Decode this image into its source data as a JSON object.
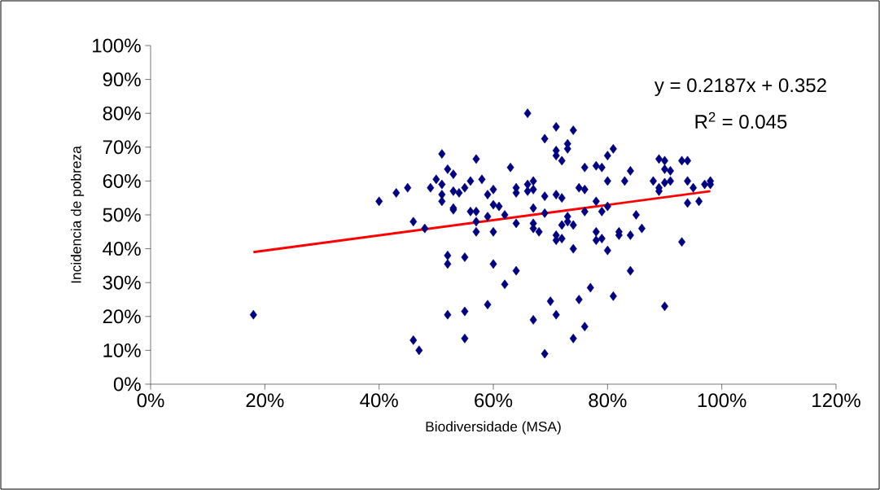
{
  "chart_data": {
    "type": "scatter",
    "xlabel": "Biodiversidade (MSA)",
    "ylabel": "Incidencia de pobreza",
    "annotations": [
      "y = 0.2187x + 0.352",
      "R$^{2}$ = 0.045"
    ],
    "xlim": [
      0,
      1.2
    ],
    "ylim": [
      0,
      1
    ],
    "xticks": [
      {
        "value": 0,
        "label": "0%"
      },
      {
        "value": 0.2,
        "label": "20%"
      },
      {
        "value": 0.4,
        "label": "40%"
      },
      {
        "value": 0.6,
        "label": "60%"
      },
      {
        "value": 0.8,
        "label": "80%"
      },
      {
        "value": 1.0,
        "label": "100%"
      },
      {
        "value": 1.2,
        "label": "120%"
      }
    ],
    "yticks": [
      {
        "value": 0,
        "label": "0%"
      },
      {
        "value": 0.1,
        "label": "10%"
      },
      {
        "value": 0.2,
        "label": "20%"
      },
      {
        "value": 0.3,
        "label": "30%"
      },
      {
        "value": 0.4,
        "label": "40%"
      },
      {
        "value": 0.5,
        "label": "50%"
      },
      {
        "value": 0.6,
        "label": "60%"
      },
      {
        "value": 0.7,
        "label": "70%"
      },
      {
        "value": 0.8,
        "label": "80%"
      },
      {
        "value": 0.9,
        "label": "90%"
      },
      {
        "value": 1.0,
        "label": "100%"
      }
    ],
    "grid": false,
    "series": [
      {
        "color": "#000080",
        "marker": "diamond",
        "x": [
          0.18,
          0.4,
          0.43,
          0.45,
          0.46,
          0.46,
          0.47,
          0.48,
          0.49,
          0.5,
          0.51,
          0.51,
          0.51,
          0.51,
          0.52,
          0.52,
          0.52,
          0.52,
          0.53,
          0.53,
          0.53,
          0.53,
          0.54,
          0.55,
          0.55,
          0.55,
          0.55,
          0.56,
          0.56,
          0.57,
          0.57,
          0.57,
          0.57,
          0.58,
          0.59,
          0.59,
          0.59,
          0.6,
          0.6,
          0.6,
          0.6,
          0.61,
          0.62,
          0.62,
          0.63,
          0.64,
          0.64,
          0.64,
          0.64,
          0.66,
          0.66,
          0.66,
          0.67,
          0.67,
          0.67,
          0.67,
          0.67,
          0.67,
          0.68,
          0.69,
          0.69,
          0.69,
          0.69,
          0.7,
          0.71,
          0.71,
          0.71,
          0.71,
          0.71,
          0.71,
          0.71,
          0.72,
          0.72,
          0.72,
          0.72,
          0.73,
          0.73,
          0.73,
          0.73,
          0.74,
          0.74,
          0.74,
          0.74,
          0.75,
          0.75,
          0.76,
          0.76,
          0.76,
          0.76,
          0.77,
          0.78,
          0.78,
          0.78,
          0.78,
          0.79,
          0.79,
          0.79,
          0.8,
          0.8,
          0.8,
          0.8,
          0.81,
          0.81,
          0.82,
          0.82,
          0.83,
          0.84,
          0.84,
          0.84,
          0.85,
          0.86,
          0.88,
          0.89,
          0.89,
          0.89,
          0.9,
          0.9,
          0.9,
          0.9,
          0.91,
          0.91,
          0.93,
          0.93,
          0.94,
          0.94,
          0.94,
          0.95,
          0.96,
          0.97,
          0.98,
          0.98
        ],
        "values": [
          0.205,
          0.54,
          0.565,
          0.58,
          0.48,
          0.13,
          0.1,
          0.46,
          0.58,
          0.605,
          0.68,
          0.59,
          0.56,
          0.54,
          0.635,
          0.38,
          0.355,
          0.205,
          0.62,
          0.57,
          0.52,
          0.515,
          0.565,
          0.58,
          0.375,
          0.215,
          0.135,
          0.6,
          0.51,
          0.665,
          0.51,
          0.48,
          0.45,
          0.605,
          0.56,
          0.495,
          0.235,
          0.575,
          0.53,
          0.45,
          0.355,
          0.525,
          0.5,
          0.295,
          0.64,
          0.58,
          0.565,
          0.475,
          0.335,
          0.8,
          0.59,
          0.57,
          0.6,
          0.575,
          0.52,
          0.475,
          0.46,
          0.19,
          0.45,
          0.725,
          0.555,
          0.505,
          0.09,
          0.245,
          0.76,
          0.69,
          0.675,
          0.56,
          0.44,
          0.425,
          0.205,
          0.66,
          0.55,
          0.47,
          0.43,
          0.71,
          0.695,
          0.495,
          0.48,
          0.75,
          0.47,
          0.4,
          0.135,
          0.58,
          0.25,
          0.64,
          0.575,
          0.51,
          0.17,
          0.285,
          0.645,
          0.54,
          0.45,
          0.425,
          0.64,
          0.51,
          0.43,
          0.675,
          0.6,
          0.525,
          0.395,
          0.695,
          0.26,
          0.45,
          0.44,
          0.6,
          0.63,
          0.44,
          0.335,
          0.5,
          0.46,
          0.6,
          0.665,
          0.58,
          0.57,
          0.66,
          0.635,
          0.595,
          0.23,
          0.63,
          0.6,
          0.66,
          0.42,
          0.66,
          0.6,
          0.535,
          0.58,
          0.54,
          0.59,
          0.6,
          0.59
        ]
      },
      {
        "type": "line",
        "color": "#ff0000",
        "marker": "none",
        "x": [
          0.18,
          0.98
        ],
        "values": [
          0.39,
          0.57
        ]
      }
    ]
  }
}
